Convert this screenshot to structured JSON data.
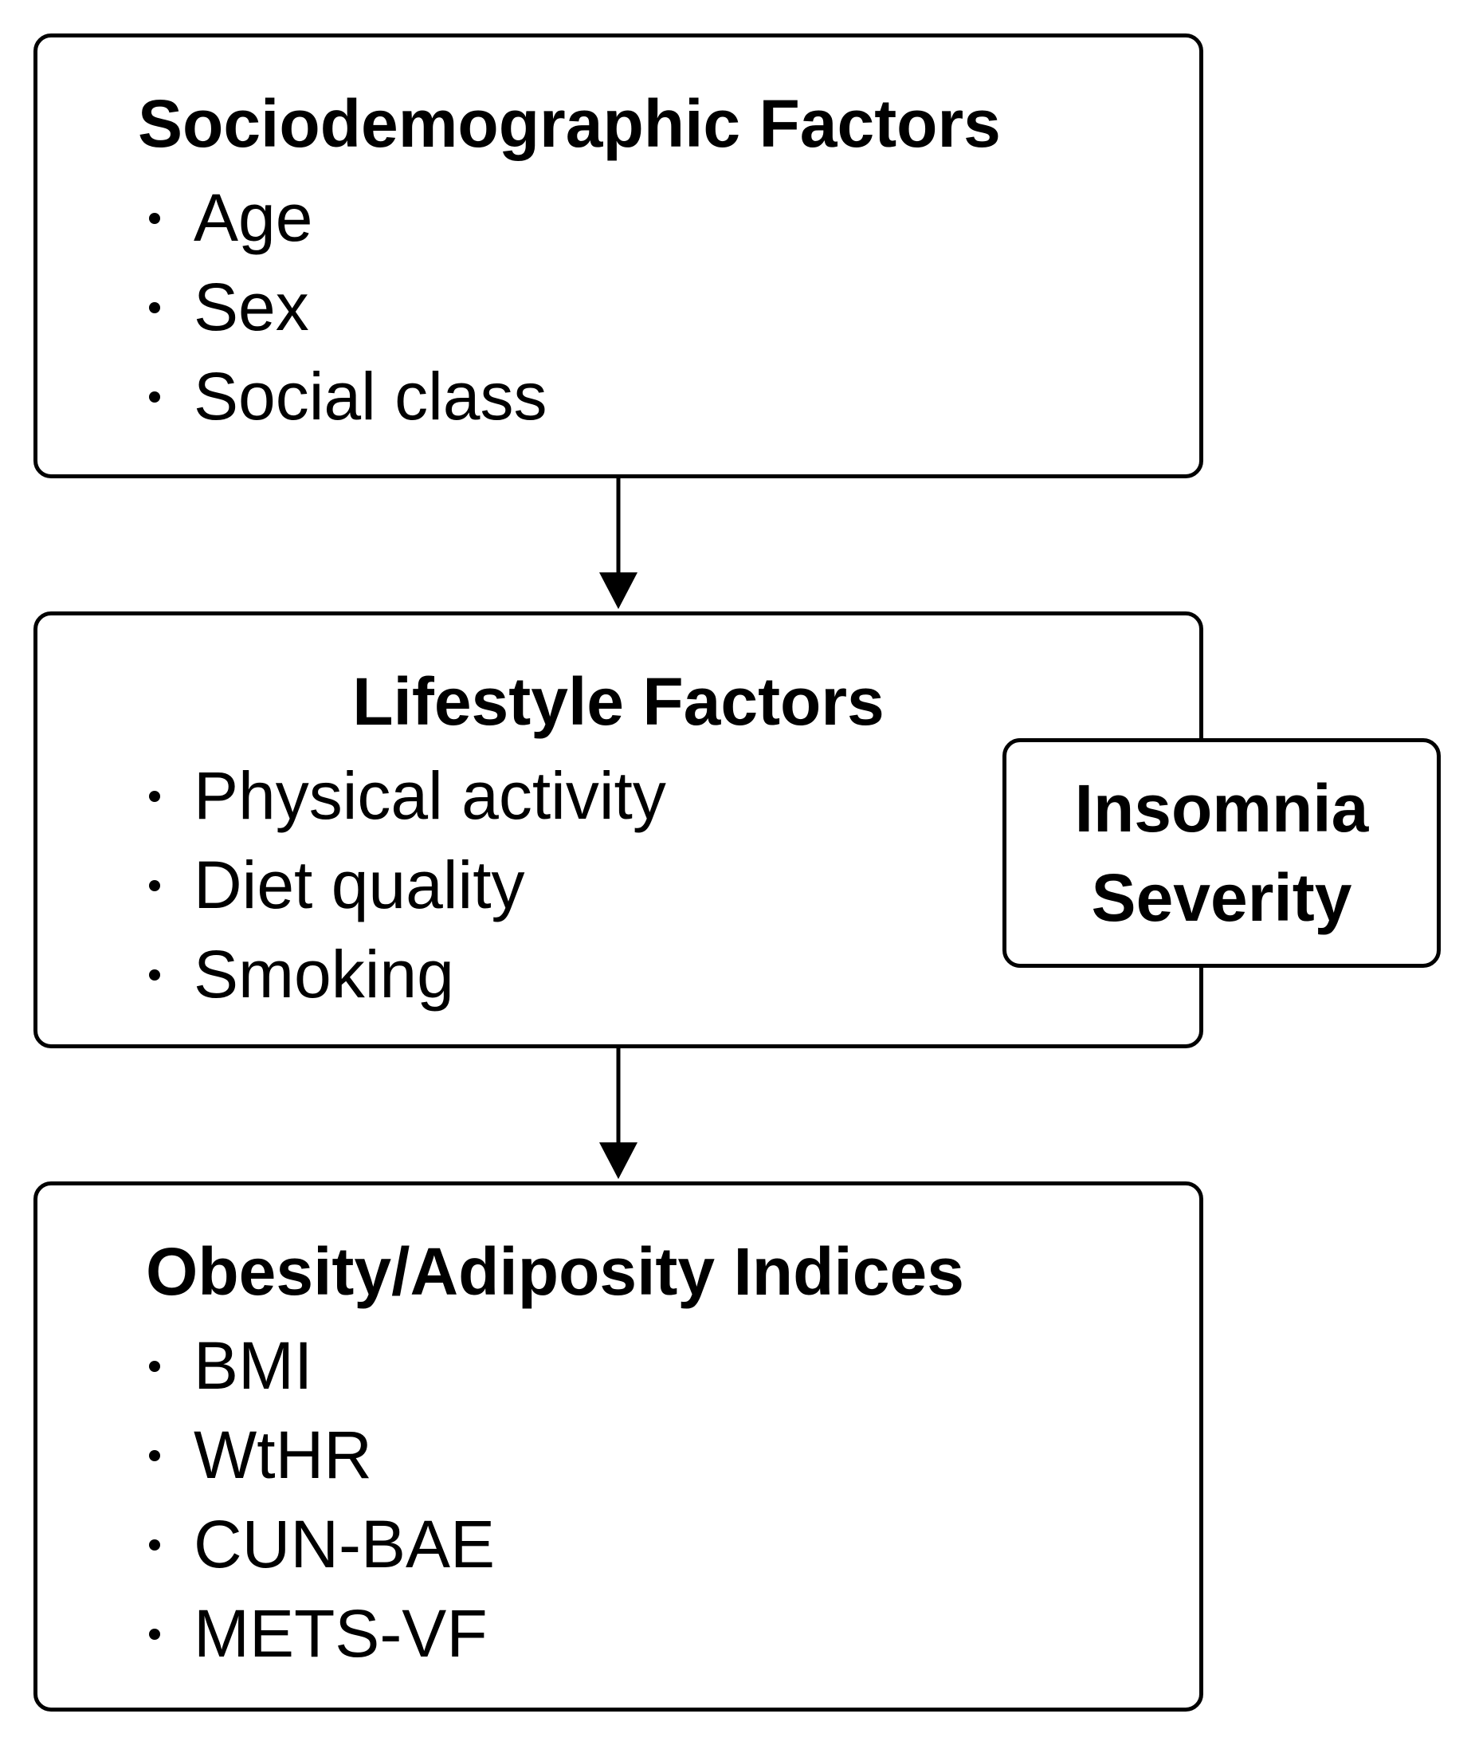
{
  "diagram": {
    "sociodemographic": {
      "title": "Sociodemographic Factors",
      "items": [
        "Age",
        "Sex",
        "Social class"
      ]
    },
    "lifestyle": {
      "title": "Lifestyle Factors",
      "items": [
        "Physical activity",
        "Diet quality",
        "Smoking"
      ]
    },
    "obesity": {
      "title": "Obesity/Adiposity Indices",
      "items": [
        "BMI",
        "WtHR",
        "CUN-BAE",
        "METS-VF"
      ]
    },
    "insomnia": {
      "lines": [
        "Insomnia",
        "Severity"
      ]
    },
    "edges": [
      {
        "from": "sociodemographic",
        "to": "lifestyle"
      },
      {
        "from": "lifestyle",
        "to": "obesity"
      }
    ]
  },
  "colors": {
    "stroke": "#000000",
    "background": "#ffffff"
  }
}
